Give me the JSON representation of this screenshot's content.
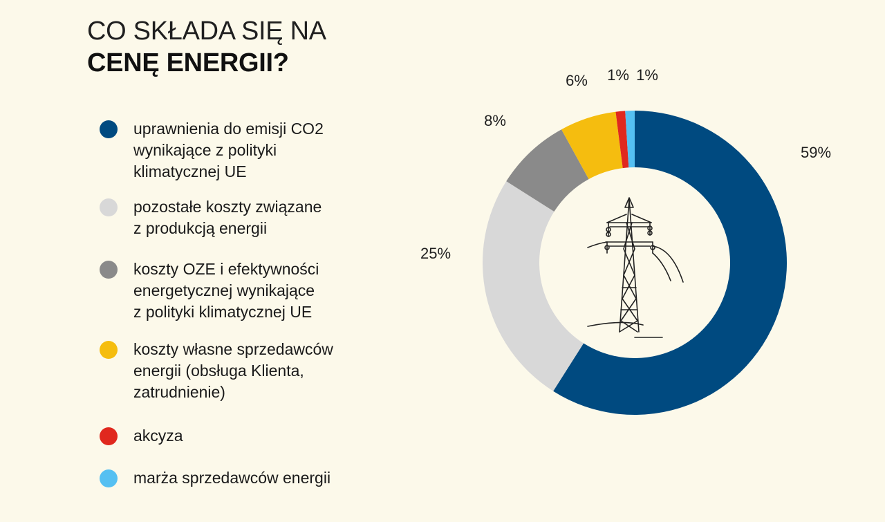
{
  "title": {
    "line1": "CO SKŁADA SIĘ NA",
    "line2": "CENĘ ENERGII?"
  },
  "chart_data": {
    "type": "pie",
    "variant": "donut",
    "categories": [
      "uprawnienia do emisji CO2\nwynikające z polityki\nklimatycznej UE",
      "pozostałe koszty związane\nz produkcją energii",
      "koszty OZE i efektywności\nenergetycznej wynikające\nz polityki klimatycznej UE",
      "koszty własne sprzedawców\nenergii (obsługa Klienta,\nzatrudnienie)",
      "akcyza",
      "marża sprzedawców energii"
    ],
    "values": [
      59,
      25,
      8,
      6,
      1,
      1
    ],
    "value_labels": [
      "59%",
      "25%",
      "8%",
      "6%",
      "1%",
      "1%"
    ],
    "colors": [
      "#004a80",
      "#d8d8d8",
      "#8a8a8a",
      "#f5bd0f",
      "#e0281e",
      "#55c0f2"
    ],
    "legend_position": "left",
    "center_icon": "power-pylon-icon"
  }
}
